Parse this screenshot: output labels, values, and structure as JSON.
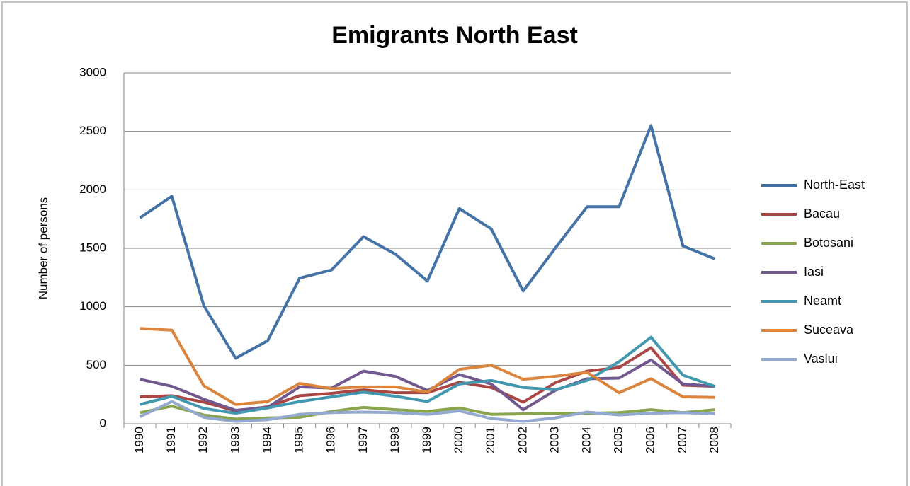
{
  "chart_data": {
    "type": "line",
    "title": "Emigrants North East",
    "y_label": "Number of persons",
    "categories": [
      "1990",
      "1991",
      "1992",
      "1993",
      "1994",
      "1995",
      "1996",
      "1997",
      "1998",
      "1999",
      "2000",
      "2001",
      "2002",
      "2003",
      "2004",
      "2005",
      "2006",
      "2007",
      "2008"
    ],
    "series": [
      {
        "name": "North-East",
        "color": "#4572A7",
        "values": [
          1760,
          1945,
          1010,
          560,
          710,
          1245,
          1315,
          1600,
          1450,
          1220,
          1840,
          1665,
          1135,
          1500,
          1855,
          1855,
          2550,
          1520,
          1410
        ]
      },
      {
        "name": "Bacau",
        "color": "#AA4643",
        "values": [
          230,
          240,
          185,
          110,
          145,
          240,
          260,
          290,
          265,
          265,
          355,
          310,
          185,
          350,
          450,
          480,
          650,
          330,
          320
        ]
      },
      {
        "name": "Botosani",
        "color": "#89A54E",
        "values": [
          95,
          150,
          75,
          40,
          50,
          55,
          105,
          140,
          120,
          105,
          135,
          80,
          85,
          90,
          90,
          95,
          120,
          95,
          120
        ]
      },
      {
        "name": "Iasi",
        "color": "#71588F",
        "values": [
          380,
          320,
          210,
          115,
          140,
          315,
          305,
          450,
          405,
          285,
          420,
          340,
          120,
          285,
          385,
          390,
          545,
          340,
          320
        ]
      },
      {
        "name": "Neamt",
        "color": "#4198AF",
        "values": [
          165,
          235,
          130,
          90,
          135,
          190,
          230,
          270,
          235,
          190,
          340,
          370,
          310,
          290,
          370,
          530,
          740,
          415,
          320
        ]
      },
      {
        "name": "Suceava",
        "color": "#DB843D",
        "values": [
          815,
          800,
          325,
          165,
          190,
          345,
          300,
          315,
          315,
          270,
          465,
          500,
          380,
          405,
          440,
          265,
          385,
          230,
          225
        ]
      },
      {
        "name": "Vaslui",
        "color": "#93A9CF",
        "values": [
          60,
          190,
          55,
          20,
          35,
          80,
          95,
          100,
          95,
          80,
          110,
          45,
          20,
          50,
          100,
          75,
          90,
          95,
          85
        ]
      }
    ],
    "ylim": [
      0,
      3000
    ],
    "yticks": [
      0,
      500,
      1000,
      1500,
      2000,
      2500,
      3000
    ],
    "grid": true,
    "legend": "right"
  }
}
